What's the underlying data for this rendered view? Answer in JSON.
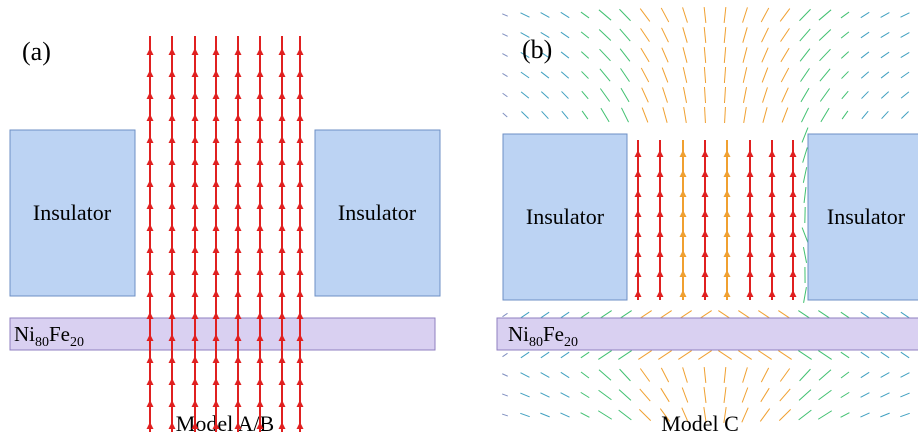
{
  "panels": [
    {
      "label": "(a)",
      "insulators": [
        "Insulator",
        "Insulator"
      ],
      "film": [
        "Ni",
        "80",
        "Fe",
        "20"
      ],
      "caption": "Model A/B"
    },
    {
      "label": "(b)",
      "insulators": [
        "Insulator",
        "Insulator"
      ],
      "film": [
        "Ni",
        "80",
        "Fe",
        "20"
      ],
      "caption": "Model C"
    }
  ]
}
